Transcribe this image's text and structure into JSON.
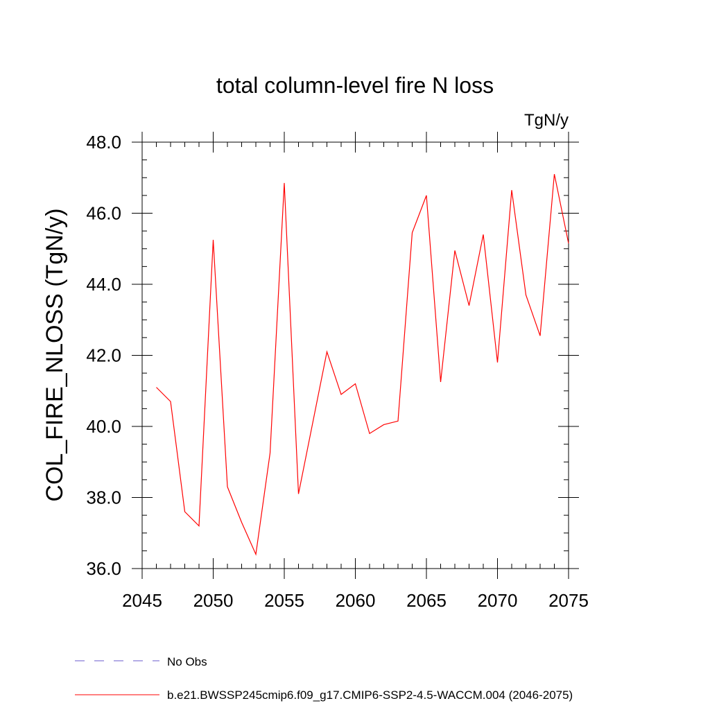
{
  "chart_data": {
    "type": "line",
    "title": "total column-level fire N loss",
    "units_label": "TgN/y",
    "xlabel": "",
    "ylabel": "COL_FIRE_NLOSS  (TgN/y)",
    "xlim": [
      2045,
      2075
    ],
    "ylim": [
      36.0,
      48.0
    ],
    "x_ticks": [
      2045,
      2050,
      2055,
      2060,
      2065,
      2070,
      2075
    ],
    "x_tick_labels": [
      "2045",
      "2050",
      "2055",
      "2060",
      "2065",
      "2070",
      "2075"
    ],
    "y_ticks": [
      36.0,
      38.0,
      40.0,
      42.0,
      44.0,
      46.0,
      48.0
    ],
    "y_tick_labels": [
      "36.0",
      "38.0",
      "40.0",
      "42.0",
      "44.0",
      "46.0",
      "48.0"
    ],
    "grid": false,
    "legend": [
      {
        "label": "No Obs",
        "color": "#6a5acd",
        "style": "dashed"
      },
      {
        "label": "b.e21.BWSSP245cmip6.f09_g17.CMIP6-SSP2-4.5-WACCM.004 (2046-2075)",
        "color": "#ff0000",
        "style": "solid"
      }
    ],
    "series": [
      {
        "name": "b.e21.BWSSP245cmip6.f09_g17.CMIP6-SSP2-4.5-WACCM.004 (2046-2075)",
        "color": "#ff0000",
        "x": [
          2046,
          2047,
          2048,
          2049,
          2050,
          2051,
          2052,
          2053,
          2054,
          2055,
          2056,
          2057,
          2058,
          2059,
          2060,
          2061,
          2062,
          2063,
          2064,
          2065,
          2066,
          2067,
          2068,
          2069,
          2070,
          2071,
          2072,
          2073,
          2074,
          2075
        ],
        "values": [
          41.1,
          40.7,
          37.6,
          37.2,
          45.25,
          38.3,
          37.3,
          36.4,
          39.25,
          46.85,
          38.1,
          40.1,
          42.1,
          40.9,
          41.2,
          39.8,
          40.05,
          40.15,
          45.45,
          46.5,
          41.25,
          44.95,
          43.4,
          45.4,
          41.8,
          46.65,
          43.7,
          42.55,
          47.1,
          45.15
        ]
      }
    ]
  }
}
